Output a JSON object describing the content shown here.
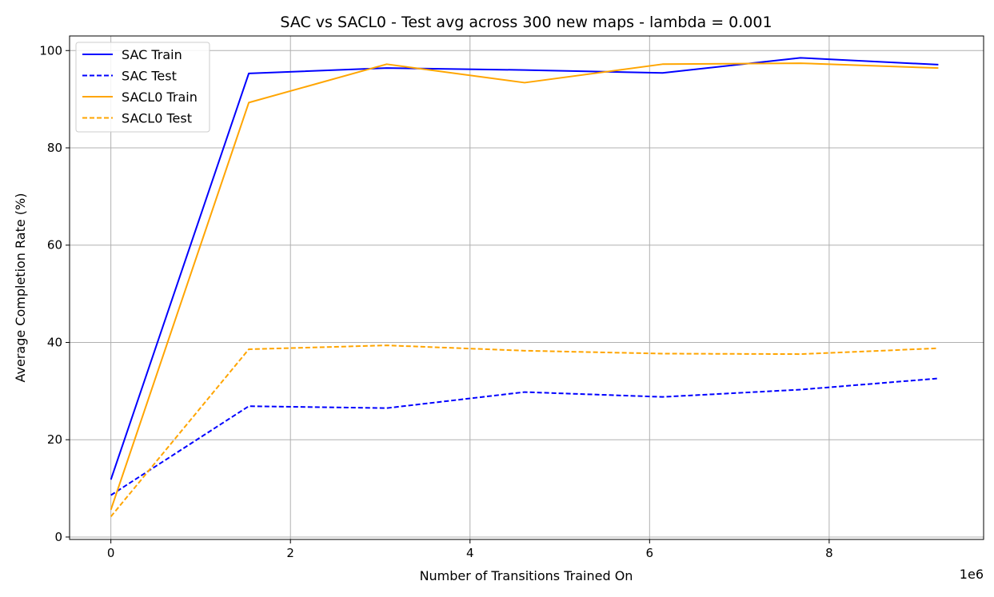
{
  "chart_data": {
    "type": "line",
    "title": "SAC vs SACL0 - Test avg across 300 new maps - lambda = 0.001",
    "xlabel": "Number of Transitions Trained On",
    "ylabel": "Average Completion Rate (%)",
    "x_offset_label": "1e6",
    "xlim": [
      -0.46,
      9.72
    ],
    "ylim": [
      -0.5,
      103.0
    ],
    "x_ticks": [
      0,
      2,
      4,
      6,
      8
    ],
    "x_tick_labels": [
      "0",
      "2",
      "4",
      "6",
      "8"
    ],
    "y_ticks": [
      0,
      20,
      40,
      60,
      80,
      100
    ],
    "y_tick_labels": [
      "0",
      "20",
      "40",
      "60",
      "80",
      "100"
    ],
    "grid": true,
    "legend_position": "top-left",
    "x": [
      0,
      1.536,
      3.072,
      4.608,
      6.144,
      7.68,
      9.216
    ],
    "series": [
      {
        "name": "SAC Train",
        "color": "#0000ff",
        "dashed": false,
        "values": [
          11.8,
          95.3,
          96.4,
          96.0,
          95.4,
          98.5,
          97.1
        ]
      },
      {
        "name": "SAC Test",
        "color": "#0000ff",
        "dashed": true,
        "values": [
          8.6,
          26.9,
          26.5,
          29.8,
          28.8,
          30.3,
          32.6
        ]
      },
      {
        "name": "SACL0 Train",
        "color": "#ffa500",
        "dashed": false,
        "values": [
          5.6,
          89.3,
          97.2,
          93.4,
          97.2,
          97.4,
          96.4
        ]
      },
      {
        "name": "SACL0 Test",
        "color": "#ffa500",
        "dashed": true,
        "values": [
          4.2,
          38.6,
          39.4,
          38.3,
          37.7,
          37.6,
          38.8
        ]
      }
    ]
  }
}
